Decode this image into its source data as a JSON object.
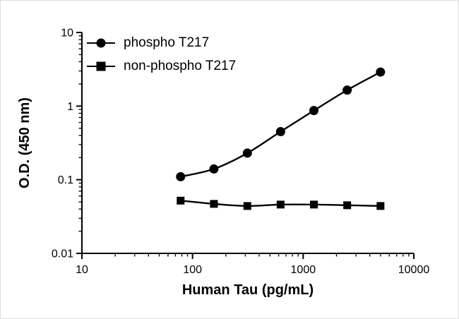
{
  "chart_data": {
    "type": "line",
    "title": "",
    "xlabel": "Human Tau (pg/mL)",
    "ylabel": "O.D. (450 nm)",
    "x_scale": "log",
    "y_scale": "log",
    "xlim": [
      10,
      10000
    ],
    "ylim": [
      0.01,
      10
    ],
    "x_ticks": [
      10,
      100,
      1000,
      10000
    ],
    "x_tick_labels": [
      "10",
      "100",
      "1000",
      "10000"
    ],
    "y_ticks": [
      0.01,
      0.1,
      1,
      10
    ],
    "y_tick_labels": [
      "0.01",
      "0.1",
      "1",
      "10"
    ],
    "grid": false,
    "legend_position": "top-left",
    "line_color": "#000000",
    "series": [
      {
        "name": "phospho T217",
        "marker": "circle",
        "color": "#000000",
        "x": [
          78,
          156,
          313,
          625,
          1250,
          2500,
          5000
        ],
        "y": [
          0.11,
          0.14,
          0.23,
          0.45,
          0.87,
          1.65,
          2.9
        ]
      },
      {
        "name": "non-phospho T217",
        "marker": "square",
        "color": "#000000",
        "x": [
          78,
          156,
          313,
          625,
          1250,
          2500,
          5000
        ],
        "y": [
          0.052,
          0.047,
          0.044,
          0.046,
          0.046,
          0.045,
          0.044
        ]
      }
    ]
  }
}
